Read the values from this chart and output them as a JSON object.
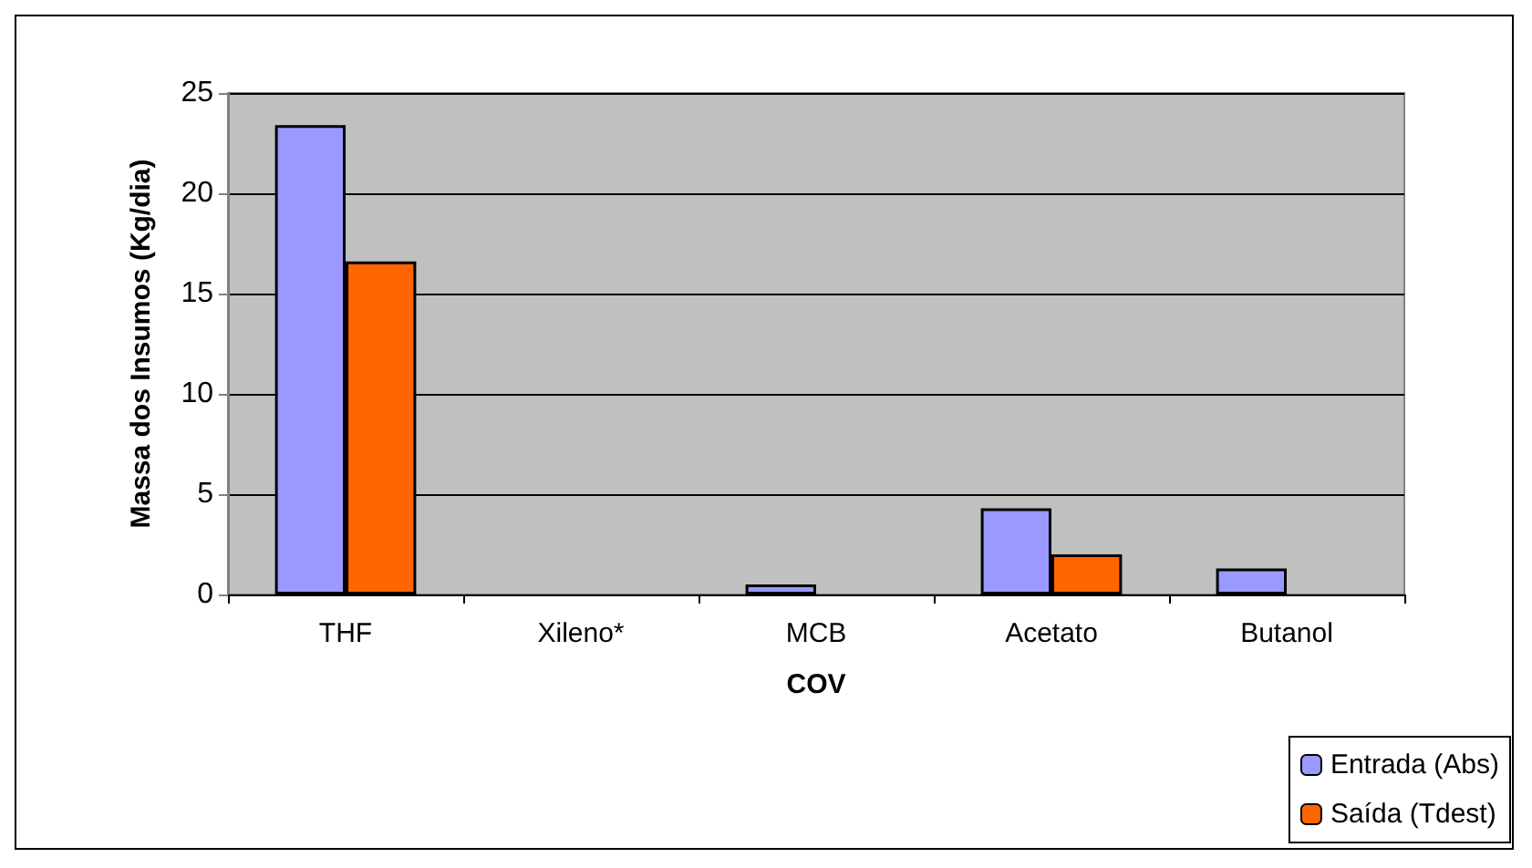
{
  "chart_data": {
    "type": "bar",
    "xlabel": "COV",
    "ylabel": "Massa dos Insumos (Kg/dia)",
    "categories": [
      "THF",
      "Xileno*",
      "MCB",
      "Acetato",
      "Butanol"
    ],
    "series": [
      {
        "name": "Entrada (Abs)",
        "color": "#9999ff",
        "values": [
          23.4,
          0,
          0.5,
          4.3,
          1.3
        ]
      },
      {
        "name": "Saída (Tdest)",
        "color": "#ff6600",
        "values": [
          16.6,
          0,
          0,
          2.0,
          0
        ]
      }
    ],
    "ylim": [
      0,
      25
    ],
    "yticks": [
      0,
      5,
      10,
      15,
      20,
      25
    ],
    "grid": "y",
    "legend": "bottom right"
  }
}
